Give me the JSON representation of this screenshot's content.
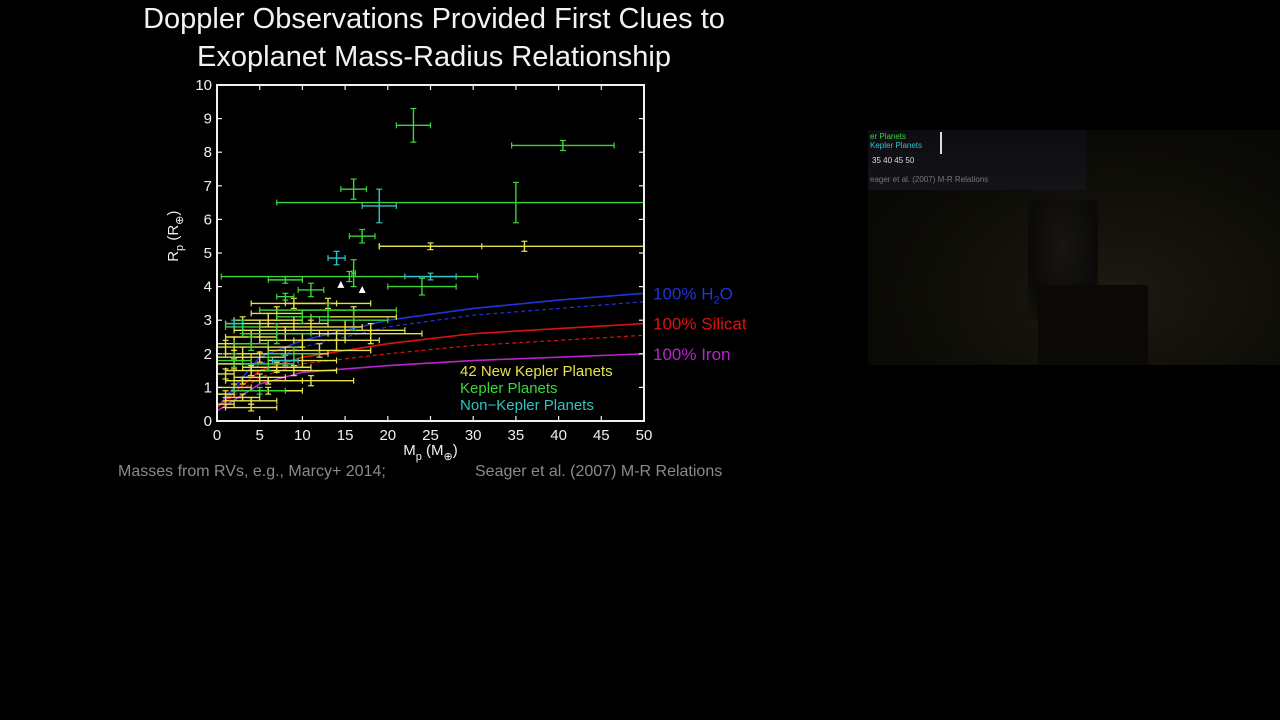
{
  "slide": {
    "title_line1": "Doppler Observations Provided First Clues to",
    "title_line2": "Exoplanet Mass-Radius Relationship",
    "caption_left": "Masses from RVs, e.g., Marcy+ 2014;",
    "caption_right": "Seager et al. (2007) M-R Relations"
  },
  "colors": {
    "background": "#000000",
    "new_kepler": "#e6e24a",
    "kepler": "#3ad63a",
    "non_kepler": "#2fc4c4",
    "water": "#2233dd",
    "silicate": "#dd1111",
    "iron": "#bb22cc"
  },
  "chart_data": {
    "type": "scatter",
    "xlabel": "M",
    "xlabel_sub": "p",
    "xlabel_unit": "(M",
    "xlabel_unit_sub": "⊕",
    "ylabel": "R",
    "ylabel_sub": "p",
    "ylabel_unit": "(R",
    "ylabel_unit_sub": "⊕",
    "xlim": [
      0,
      50
    ],
    "ylim": [
      0,
      10
    ],
    "xticks": [
      "0",
      "5",
      "10",
      "15",
      "20",
      "25",
      "30",
      "35",
      "40",
      "45",
      "50"
    ],
    "yticks": [
      "0",
      "1",
      "2",
      "3",
      "4",
      "5",
      "6",
      "7",
      "8",
      "9",
      "10"
    ],
    "legend_position": "bottom-right",
    "series": [
      {
        "name": "42 New Kepler Planets",
        "color_key": "new_kepler",
        "points": [
          {
            "x": 36,
            "y": 5.2,
            "xerr": 17,
            "yerr": 0.15
          },
          {
            "x": 25,
            "y": 5.2,
            "xerr": 6,
            "yerr": 0.1
          },
          {
            "x": 9,
            "y": 3.5,
            "xerr": 5,
            "yerr": 0.15
          },
          {
            "x": 13,
            "y": 3.5,
            "xerr": 5,
            "yerr": 0.15
          },
          {
            "x": 6,
            "y": 3.0,
            "xerr": 4,
            "yerr": 0.2
          },
          {
            "x": 11,
            "y": 2.8,
            "xerr": 6,
            "yerr": 0.2
          },
          {
            "x": 15,
            "y": 2.7,
            "xerr": 7,
            "yerr": 0.3
          },
          {
            "x": 8,
            "y": 2.6,
            "xerr": 5,
            "yerr": 0.2
          },
          {
            "x": 4,
            "y": 2.5,
            "xerr": 3,
            "yerr": 0.2
          },
          {
            "x": 10,
            "y": 2.4,
            "xerr": 5,
            "yerr": 0.2
          },
          {
            "x": 2,
            "y": 2.3,
            "xerr": 2,
            "yerr": 0.2
          },
          {
            "x": 6,
            "y": 2.2,
            "xerr": 4,
            "yerr": 0.2
          },
          {
            "x": 3,
            "y": 2.0,
            "xerr": 2,
            "yerr": 0.2
          },
          {
            "x": 8,
            "y": 2.0,
            "xerr": 5,
            "yerr": 0.2
          },
          {
            "x": 12,
            "y": 2.1,
            "xerr": 6,
            "yerr": 0.2
          },
          {
            "x": 5,
            "y": 1.9,
            "xerr": 3,
            "yerr": 0.15
          },
          {
            "x": 2,
            "y": 1.7,
            "xerr": 2,
            "yerr": 0.15
          },
          {
            "x": 7,
            "y": 1.6,
            "xerr": 4,
            "yerr": 0.15
          },
          {
            "x": 4,
            "y": 1.5,
            "xerr": 3,
            "yerr": 0.15
          },
          {
            "x": 1,
            "y": 1.4,
            "xerr": 1,
            "yerr": 0.15
          },
          {
            "x": 5,
            "y": 1.3,
            "xerr": 3,
            "yerr": 0.1
          },
          {
            "x": 3,
            "y": 1.2,
            "xerr": 2,
            "yerr": 0.1
          },
          {
            "x": 2,
            "y": 1.0,
            "xerr": 2,
            "yerr": 0.1
          },
          {
            "x": 6,
            "y": 0.9,
            "xerr": 4,
            "yerr": 0.1
          },
          {
            "x": 1,
            "y": 0.8,
            "xerr": 1,
            "yerr": 0.1
          },
          {
            "x": 3,
            "y": 0.7,
            "xerr": 2,
            "yerr": 0.1
          },
          {
            "x": 1,
            "y": 0.5,
            "xerr": 1,
            "yerr": 0.1
          },
          {
            "x": 4,
            "y": 0.4,
            "xerr": 3,
            "yerr": 0.1
          },
          {
            "x": 9,
            "y": 1.5,
            "xerr": 5,
            "yerr": 0.15
          },
          {
            "x": 14,
            "y": 2.4,
            "xerr": 5,
            "yerr": 0.3
          },
          {
            "x": 18,
            "y": 2.6,
            "xerr": 6,
            "yerr": 0.3
          },
          {
            "x": 7,
            "y": 3.2,
            "xerr": 3,
            "yerr": 0.2
          },
          {
            "x": 3,
            "y": 2.9,
            "xerr": 2,
            "yerr": 0.2
          },
          {
            "x": 10,
            "y": 1.8,
            "xerr": 4,
            "yerr": 0.2
          },
          {
            "x": 6,
            "y": 1.2,
            "xerr": 4,
            "yerr": 0.1
          },
          {
            "x": 1,
            "y": 2.2,
            "xerr": 1,
            "yerr": 0.2
          },
          {
            "x": 9,
            "y": 2.9,
            "xerr": 4,
            "yerr": 0.2
          },
          {
            "x": 16,
            "y": 3.1,
            "xerr": 5,
            "yerr": 0.3
          },
          {
            "x": 5,
            "y": 2.7,
            "xerr": 3,
            "yerr": 0.2
          },
          {
            "x": 2,
            "y": 1.9,
            "xerr": 2,
            "yerr": 0.2
          },
          {
            "x": 11,
            "y": 1.2,
            "xerr": 5,
            "yerr": 0.15
          },
          {
            "x": 4,
            "y": 0.6,
            "xerr": 3,
            "yerr": 0.1
          }
        ]
      },
      {
        "name": "Kepler Planets",
        "color_key": "kepler",
        "points": [
          {
            "x": 23,
            "y": 8.8,
            "xerr": 2,
            "yerr": 0.5
          },
          {
            "x": 40.5,
            "y": 8.2,
            "xerr": 6,
            "yerr": 0.15
          },
          {
            "x": 16,
            "y": 6.9,
            "xerr": 1.5,
            "yerr": 0.3
          },
          {
            "x": 35,
            "y": 6.5,
            "xerr": 28,
            "yerr": 0.6
          },
          {
            "x": 17,
            "y": 5.5,
            "xerr": 1.5,
            "yerr": 0.2
          },
          {
            "x": 15.5,
            "y": 4.3,
            "xerr": 15,
            "yerr": 0.15
          },
          {
            "x": 8,
            "y": 4.2,
            "xerr": 2,
            "yerr": 0.1
          },
          {
            "x": 11,
            "y": 3.9,
            "xerr": 1.5,
            "yerr": 0.2
          },
          {
            "x": 24,
            "y": 4.0,
            "xerr": 4,
            "yerr": 0.25
          },
          {
            "x": 16,
            "y": 4.4,
            "xerr": 0.2,
            "yerr": 0.4
          },
          {
            "x": 13,
            "y": 3.3,
            "xerr": 8,
            "yerr": 0.2
          },
          {
            "x": 16,
            "y": 3.0,
            "xerr": 4,
            "yerr": 0.3
          },
          {
            "x": 8,
            "y": 3.7,
            "xerr": 1,
            "yerr": 0.1
          },
          {
            "x": 7,
            "y": 2.6,
            "xerr": 4,
            "yerr": 0.3
          },
          {
            "x": 9,
            "y": 2.0,
            "xerr": 3,
            "yerr": 0.2
          },
          {
            "x": 4,
            "y": 2.3,
            "xerr": 2,
            "yerr": 0.2
          },
          {
            "x": 2,
            "y": 1.8,
            "xerr": 2,
            "yerr": 0.2
          },
          {
            "x": 6,
            "y": 1.7,
            "xerr": 3,
            "yerr": 0.2
          },
          {
            "x": 3,
            "y": 2.8,
            "xerr": 2,
            "yerr": 0.2
          },
          {
            "x": 10,
            "y": 3.1,
            "xerr": 3,
            "yerr": 0.2
          },
          {
            "x": 5,
            "y": 0.9,
            "xerr": 3,
            "yerr": 0.1
          }
        ]
      },
      {
        "name": "Non−Kepler Planets",
        "color_key": "non_kepler",
        "points": [
          {
            "x": 19,
            "y": 6.4,
            "xerr": 2,
            "yerr": 0.5
          },
          {
            "x": 14,
            "y": 4.85,
            "xerr": 1,
            "yerr": 0.2
          },
          {
            "x": 25,
            "y": 4.3,
            "xerr": 3,
            "yerr": 0.1
          },
          {
            "x": 8,
            "y": 1.8,
            "xerr": 1.5,
            "yerr": 0.15
          },
          {
            "x": 2,
            "y": 2.9,
            "xerr": 1,
            "yerr": 0.1
          }
        ]
      }
    ],
    "triangles": [
      {
        "x": 14.5,
        "y": 4.05
      },
      {
        "x": 17,
        "y": 3.9
      }
    ],
    "model_curves": [
      {
        "name": "100% H₂O",
        "label_main": "100% H",
        "label_sub": "2",
        "label_tail": "O",
        "color_key": "water",
        "x": [
          0,
          5,
          10,
          20,
          30,
          40,
          50
        ],
        "y": [
          0.4,
          1.9,
          2.4,
          3.0,
          3.35,
          3.6,
          3.8
        ],
        "dashed_y": [
          0.4,
          1.7,
          2.2,
          2.8,
          3.15,
          3.35,
          3.55
        ]
      },
      {
        "name": "100% Silicat",
        "label_main": "100% Silicat",
        "color_key": "silicate",
        "x": [
          0,
          5,
          10,
          20,
          30,
          40,
          50
        ],
        "y": [
          0.4,
          1.5,
          1.9,
          2.3,
          2.6,
          2.75,
          2.9
        ],
        "dashed_y": [
          0.4,
          1.3,
          1.7,
          2.0,
          2.25,
          2.4,
          2.55
        ]
      },
      {
        "name": "100% Iron",
        "label_main": "100% Iron",
        "color_key": "iron",
        "x": [
          0,
          5,
          10,
          20,
          30,
          40,
          50
        ],
        "y": [
          0.3,
          1.1,
          1.45,
          1.65,
          1.8,
          1.9,
          2.0
        ]
      }
    ]
  },
  "video": {
    "screen_line1": "er Planets",
    "screen_line2": "Kepler Planets",
    "screen_ticks": "35   40   45   50",
    "screen_caption": "eager et al. (2007) M-R Relations"
  }
}
